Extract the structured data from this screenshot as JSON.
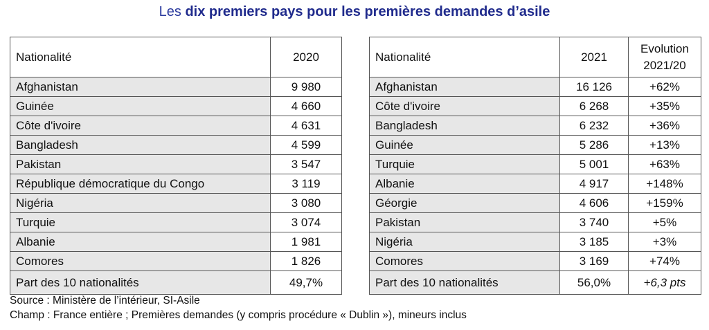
{
  "title": {
    "prefix": "Les",
    "strong": "dix premiers pays pour les premières demandes d’asile"
  },
  "left_table": {
    "headers": {
      "nationality": "Nationalité",
      "year": "2020"
    },
    "rows": [
      {
        "country": "Afghanistan",
        "value": "9 980"
      },
      {
        "country": "Guinée",
        "value": "4 660"
      },
      {
        "country": "Côte d'ivoire",
        "value": "4 631"
      },
      {
        "country": "Bangladesh",
        "value": "4 599"
      },
      {
        "country": "Pakistan",
        "value": "3 547"
      },
      {
        "country": "République démocratique du Congo",
        "value": "3 119"
      },
      {
        "country": "Nigéria",
        "value": "3 080"
      },
      {
        "country": "Turquie",
        "value": "3 074"
      },
      {
        "country": "Albanie",
        "value": "1 981"
      },
      {
        "country": "Comores",
        "value": "1 826"
      }
    ],
    "total": {
      "label": "Part des 10 nationalités",
      "value": "49,7%"
    }
  },
  "right_table": {
    "headers": {
      "nationality": "Nationalité",
      "year": "2021",
      "evolution_line1": "Evolution",
      "evolution_line2": "2021/20"
    },
    "rows": [
      {
        "country": "Afghanistan",
        "value": "16 126",
        "evolution": "+62%"
      },
      {
        "country": "Côte d'ivoire",
        "value": "6 268",
        "evolution": "+35%"
      },
      {
        "country": "Bangladesh",
        "value": "6 232",
        "evolution": "+36%"
      },
      {
        "country": "Guinée",
        "value": "5 286",
        "evolution": "+13%"
      },
      {
        "country": "Turquie",
        "value": "5 001",
        "evolution": "+63%"
      },
      {
        "country": "Albanie",
        "value": "4 917",
        "evolution": "+148%"
      },
      {
        "country": "Géorgie",
        "value": "4 606",
        "evolution": "+159%"
      },
      {
        "country": "Pakistan",
        "value": "3 740",
        "evolution": "+5%"
      },
      {
        "country": "Nigéria",
        "value": "3 185",
        "evolution": "+3%"
      },
      {
        "country": "Comores",
        "value": "3 169",
        "evolution": "+74%"
      }
    ],
    "total": {
      "label": "Part des 10 nationalités",
      "value": "56,0%",
      "evolution": "+6,3 pts"
    }
  },
  "footer": {
    "source": "Source : Ministère de l’intérieur, SI-Asile",
    "champ": "Champ : France entière ; Premières demandes (y compris procédure « Dublin »), mineurs inclus"
  }
}
